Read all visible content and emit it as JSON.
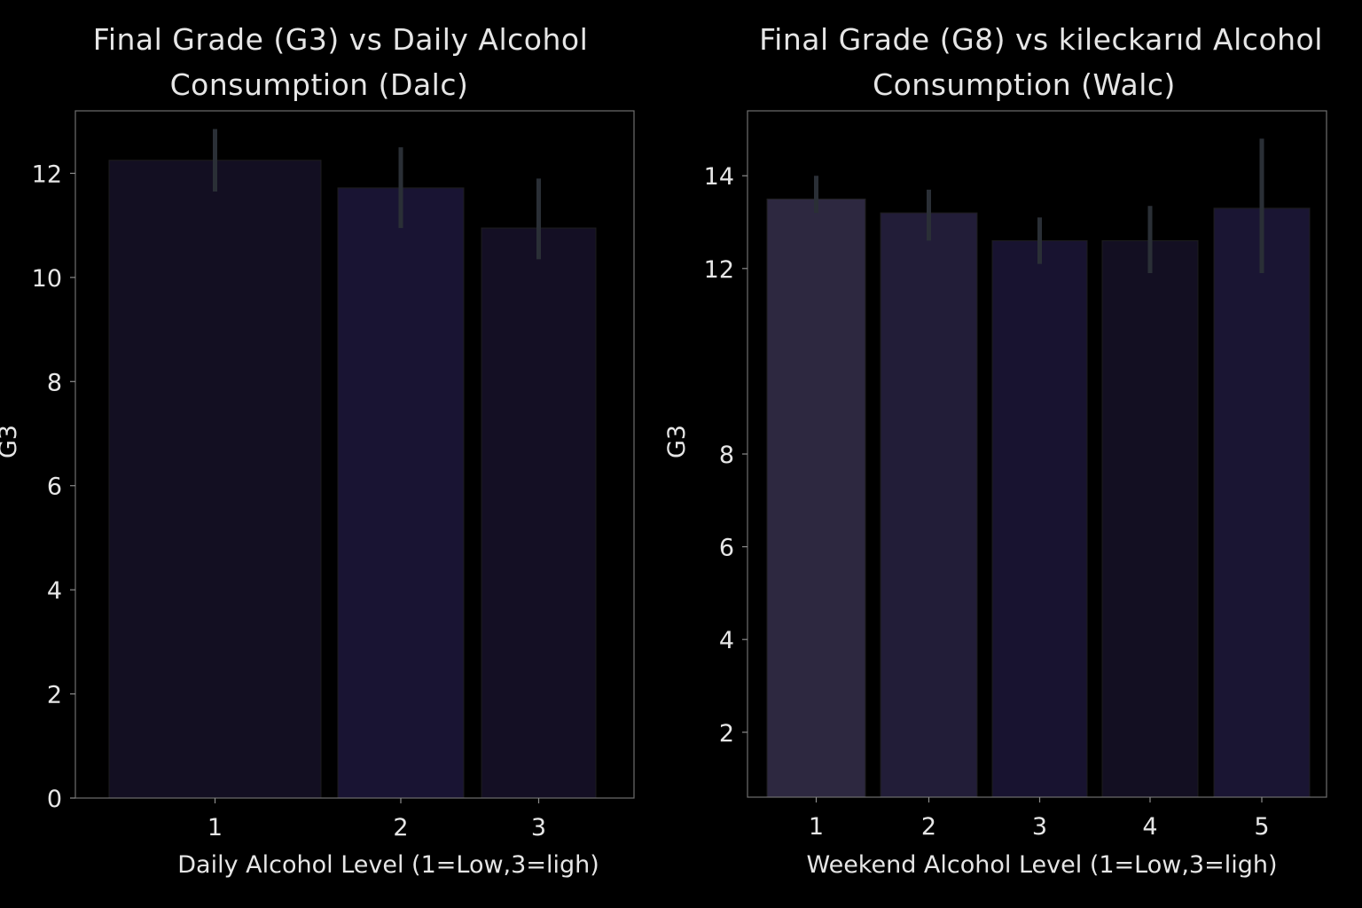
{
  "chart_data": [
    {
      "type": "bar",
      "title_lines": [
        "Final Grade (G3) vs Daily Alcohol",
        "Consumption (Dalc)"
      ],
      "xlabel": "Daily Alcohol Level (1=Low,3=ligh)",
      "ylabel": "G3",
      "categories": [
        "1",
        "2",
        "3"
      ],
      "values": [
        12.25,
        11.72,
        10.95
      ],
      "error_low": [
        11.65,
        10.95,
        10.35
      ],
      "error_high": [
        12.85,
        12.5,
        11.9
      ],
      "bar_colors": [
        "#130f22",
        "#191433",
        "#140f24"
      ],
      "ylim": [
        0,
        13.2
      ],
      "yticks": [
        0,
        2,
        4,
        6,
        8,
        10,
        12
      ],
      "grid": false
    },
    {
      "type": "bar",
      "title_lines": [
        "Final Grade (G8) vs kileckarıd Alcohol",
        "Consumption (Walc)"
      ],
      "xlabel": "Weekend Alcohol Level (1=Low,3=ligh)",
      "ylabel": "G3",
      "categories": [
        "1",
        "2",
        "3",
        "4",
        "5"
      ],
      "values": [
        13.5,
        13.2,
        12.6,
        12.6,
        13.3
      ],
      "error_low": [
        13.2,
        12.6,
        12.1,
        11.9,
        11.9
      ],
      "error_high": [
        14.0,
        13.7,
        13.1,
        13.35,
        14.8
      ],
      "bar_colors": [
        "#2d2840",
        "#221d38",
        "#181330",
        "#130f22",
        "#1a1533"
      ],
      "ylim": [
        0.6,
        15.4
      ],
      "yticks": [
        2,
        4,
        6,
        8,
        12,
        14
      ],
      "grid": false
    }
  ]
}
